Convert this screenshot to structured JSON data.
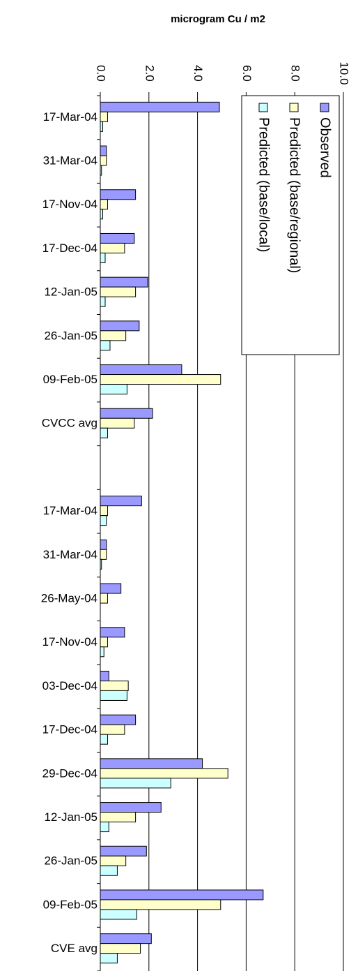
{
  "chart_data": {
    "type": "bar",
    "orientation": "horizontal",
    "axis_label": "microgram Cu / m2",
    "categories": [
      "17-Mar-04",
      "31-Mar-04",
      "17-Nov-04",
      "17-Dec-04",
      "12-Jan-05",
      "26-Jan-05",
      "09-Feb-05",
      "CVCC avg",
      null,
      "17-Mar-04",
      "31-Mar-04",
      "26-May-04",
      "17-Nov-04",
      "03-Dec-04",
      "17-Dec-04",
      "29-Dec-04",
      "12-Jan-05",
      "26-Jan-05",
      "09-Feb-05",
      "CVE avg"
    ],
    "series": [
      {
        "name": "Observed",
        "color": "#9999ff",
        "values": [
          4.9,
          0.25,
          1.45,
          1.4,
          1.95,
          1.6,
          3.35,
          2.15,
          null,
          1.7,
          0.25,
          0.85,
          1.0,
          0.35,
          1.45,
          4.2,
          2.5,
          1.9,
          6.7,
          2.1
        ]
      },
      {
        "name": "Predicted (base/regional)",
        "color": "#ffffcc",
        "values": [
          0.3,
          0.25,
          0.3,
          1.0,
          1.45,
          1.05,
          4.95,
          1.4,
          null,
          0.3,
          0.25,
          0.3,
          0.3,
          1.15,
          1.0,
          5.25,
          1.45,
          1.05,
          4.95,
          1.65
        ]
      },
      {
        "name": "Predicted (base/local)",
        "color": "#ccffff",
        "values": [
          0.1,
          0.05,
          0.1,
          0.2,
          0.2,
          0.4,
          1.1,
          0.3,
          null,
          0.25,
          0.05,
          0,
          0.15,
          1.1,
          0.3,
          2.9,
          0.35,
          0.7,
          1.5,
          0.7
        ]
      }
    ],
    "xlim": [
      0,
      10
    ],
    "xticks": [
      {
        "value": 0,
        "label": "0.0"
      },
      {
        "value": 2,
        "label": "2.0"
      },
      {
        "value": 4,
        "label": "4.0"
      },
      {
        "value": 6,
        "label": "6.0"
      },
      {
        "value": 8,
        "label": "8.0"
      },
      {
        "value": 10,
        "label": "10.0"
      }
    ],
    "grid": true,
    "legend": "top-right"
  }
}
